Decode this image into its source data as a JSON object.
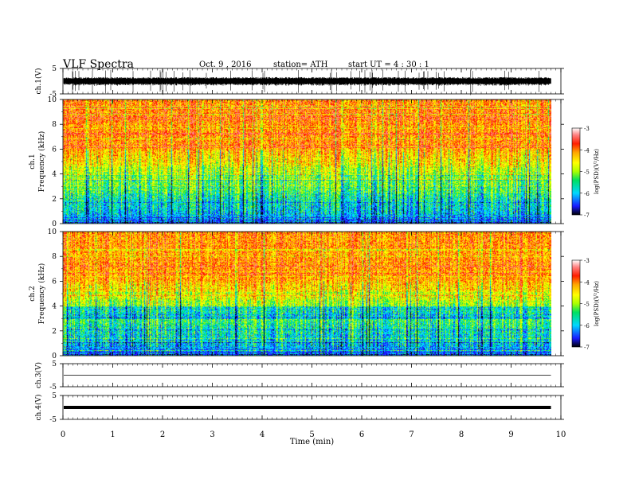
{
  "header": {
    "title": "VLF  Spectra",
    "date": "Oct. 9  , 2016",
    "station": "station= ATH",
    "start": "start  UT  =   4  : 30 : 1"
  },
  "chart_data": [
    {
      "type": "line",
      "panel": "ch1-waveform",
      "ylabel": "ch.1(V)",
      "ylim": [
        -5,
        5
      ],
      "yticks": [
        "5",
        "-5"
      ],
      "xlim": [
        0,
        10
      ],
      "data_until_min": 9.8
    },
    {
      "type": "heatmap",
      "panel": "ch1-spectrogram",
      "ylabel": "ch.1\nFrequency  (kHz)",
      "ylim": [
        0,
        10
      ],
      "yticks": [
        "0",
        "2",
        "4",
        "6",
        "8",
        "10"
      ],
      "xlim": [
        0,
        10
      ],
      "data_until_min": 9.8,
      "colorbar": {
        "label": "log(PSD)(V²/Hz)",
        "ticks": [
          "-3",
          "-4",
          "-5",
          "-6",
          "-7"
        ],
        "range": [
          -7,
          -3
        ],
        "colors": [
          "#000000",
          "#1a1aff",
          "#00d7ff",
          "#00e060",
          "#aaff00",
          "#ffff00",
          "#ffa500",
          "#ff1e00",
          "#ff8080",
          "#ffffff"
        ]
      }
    },
    {
      "type": "heatmap",
      "panel": "ch2-spectrogram",
      "ylabel": "ch.2\nFrequency  (kHz)",
      "ylim": [
        0,
        10
      ],
      "yticks": [
        "0",
        "2",
        "4",
        "6",
        "8",
        "10"
      ],
      "xlim": [
        0,
        10
      ],
      "data_until_min": 9.8,
      "colorbar": {
        "label": "log(PSD)(V²/Hz)",
        "ticks": [
          "-3",
          "-4",
          "-5",
          "-6",
          "-7"
        ],
        "range": [
          -7,
          -3
        ]
      }
    },
    {
      "type": "line",
      "panel": "ch3-waveform",
      "ylabel": "ch.3(V)",
      "ylim": [
        -5,
        5
      ],
      "yticks": [
        "5",
        "-5"
      ],
      "level": 0
    },
    {
      "type": "line",
      "panel": "ch4-waveform",
      "ylabel": "ch.4(V)",
      "ylim": [
        -5,
        5
      ],
      "yticks": [
        "5",
        "-5"
      ],
      "level": 0,
      "xlabel": "Time  (min)",
      "xticks": [
        "0",
        "1",
        "2",
        "3",
        "4",
        "5",
        "6",
        "7",
        "8",
        "9",
        "10"
      ]
    }
  ]
}
